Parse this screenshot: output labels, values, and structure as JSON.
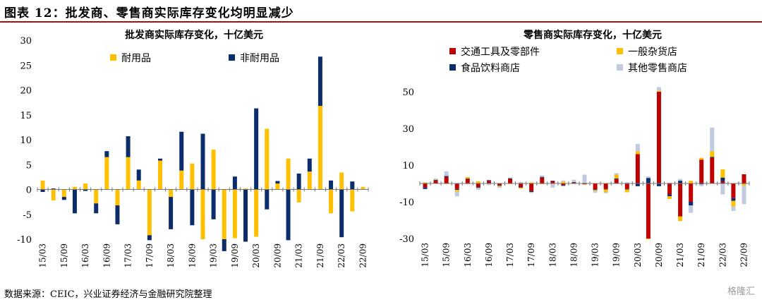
{
  "header": {
    "figure_title": "图表 12：批发商、零售商实际库存变化均明显减少"
  },
  "footer": {
    "source": "数据来源：CEIC，兴业证券经济与金融研究院整理",
    "watermark": "格隆汇"
  },
  "colors": {
    "yellow": "#ffc000",
    "navy": "#0c2d6b",
    "red": "#c00000",
    "lightblue": "#c0cbe0"
  },
  "chart_data": [
    {
      "type": "bar",
      "stacking": "stacked",
      "title": "批发商实际库存变化，十亿美元",
      "ylim": [
        -10,
        30
      ],
      "yticks": [
        -10,
        -5,
        0,
        5,
        10,
        15,
        20,
        25,
        30
      ],
      "categories": [
        "15/03",
        "15/06",
        "15/09",
        "15/12",
        "16/03",
        "16/06",
        "16/09",
        "16/12",
        "17/03",
        "17/06",
        "17/09",
        "17/12",
        "18/03",
        "18/06",
        "18/09",
        "18/12",
        "19/03",
        "19/06",
        "19/09",
        "19/12",
        "20/03",
        "20/06",
        "20/09",
        "20/12",
        "21/03",
        "21/06",
        "21/09",
        "21/12",
        "22/03",
        "22/06",
        "22/09"
      ],
      "xtick_labels": [
        "15/03",
        "15/09",
        "16/03",
        "16/09",
        "17/03",
        "17/09",
        "18/03",
        "18/09",
        "19/03",
        "19/09",
        "20/03",
        "20/09",
        "21/03",
        "21/09",
        "22/03",
        "22/09"
      ],
      "legend": [
        "耐用品",
        "非耐用品"
      ],
      "series": [
        {
          "name": "耐用品",
          "color": "#ffc000",
          "values": [
            1.8,
            -2.2,
            -1.5,
            0.5,
            1.2,
            -2.8,
            6.5,
            -3.2,
            6.5,
            1.8,
            -9.2,
            5.8,
            -1.5,
            3.8,
            5.2,
            -10.0,
            8.0,
            -10.0,
            -9.8,
            0.2,
            -9.5,
            12.2,
            1.2,
            6.2,
            -2.6,
            3.6,
            16.8,
            -4.8,
            3.4,
            -4.4,
            0.5
          ]
        },
        {
          "name": "非耐用品",
          "color": "#0c2d6b",
          "values": [
            -0.5,
            0.2,
            -0.6,
            -4.8,
            -0.3,
            -2.0,
            1.2,
            -3.8,
            4.2,
            2.2,
            -1.0,
            0.4,
            -6.5,
            7.8,
            -7.2,
            11.2,
            -6.0,
            -2.4,
            2.6,
            -10.5,
            16.3,
            -4.0,
            0.5,
            -10.2,
            3.2,
            2.6,
            9.9,
            1.8,
            -9.6,
            1.6,
            0.0
          ]
        }
      ]
    },
    {
      "type": "bar",
      "stacking": "stacked",
      "title": "零售商实际库存变化，十亿美元",
      "ylim": [
        -30,
        50
      ],
      "yticks": [
        -30,
        -10,
        10,
        30,
        50
      ],
      "categories": [
        "15/03",
        "15/06",
        "15/09",
        "15/12",
        "16/03",
        "16/06",
        "16/09",
        "16/12",
        "17/03",
        "17/06",
        "17/09",
        "17/12",
        "18/03",
        "18/06",
        "18/09",
        "18/12",
        "19/03",
        "19/06",
        "19/09",
        "19/12",
        "20/03",
        "20/06",
        "20/09",
        "20/12",
        "21/03",
        "21/06",
        "21/09",
        "21/12",
        "22/03",
        "22/06",
        "22/09"
      ],
      "xtick_labels": [
        "15/03",
        "15/09",
        "16/03",
        "16/09",
        "17/03",
        "17/09",
        "18/03",
        "18/09",
        "19/03",
        "19/09",
        "20/03",
        "20/09",
        "21/03",
        "21/09",
        "22/03",
        "22/09"
      ],
      "legend": [
        "交通工具及零部件",
        "食品饮料商店",
        "一般杂货店",
        "其他零售商店"
      ],
      "series": [
        {
          "name": "交通工具及零部件",
          "color": "#c00000",
          "values": [
            -2.2,
            1.5,
            3.5,
            -3.0,
            2.4,
            -2.0,
            1.4,
            -1.0,
            2.5,
            -2.0,
            -4.2,
            3.2,
            1.2,
            -1.0,
            0.5,
            -0.5,
            -3.2,
            -3.0,
            2.4,
            -3.0,
            16.0,
            -30.0,
            50.0,
            -6.0,
            -18.0,
            -10.0,
            13.0,
            14.0,
            1.2,
            -8.0,
            5.0
          ]
        },
        {
          "name": "食品饮料商店",
          "color": "#0c2d6b",
          "values": [
            -0.8,
            0.4,
            0.6,
            -0.5,
            0.3,
            -0.4,
            0.4,
            -0.3,
            0.3,
            -0.3,
            -0.5,
            0.4,
            0.3,
            -0.3,
            0.3,
            0.3,
            -0.4,
            -0.3,
            0.4,
            -0.3,
            -1.5,
            3.0,
            -1.5,
            -1.0,
            1.5,
            -2.0,
            -0.5,
            0.5,
            2.0,
            -1.5,
            -0.3
          ]
        },
        {
          "name": "一般杂货店",
          "color": "#ffc000",
          "values": [
            0.5,
            0.3,
            -0.3,
            -1.0,
            0.8,
            1.2,
            -0.2,
            -0.5,
            -0.3,
            -0.5,
            0.6,
            -0.4,
            -0.3,
            1.0,
            -0.3,
            -0.2,
            -0.5,
            -1.5,
            2.0,
            -1.5,
            1.5,
            -0.4,
            0.5,
            -1.5,
            -2.5,
            1.5,
            1.0,
            3.0,
            4.5,
            -3.0,
            -1.0
          ]
        },
        {
          "name": "其他零售商店",
          "color": "#c0cbe0",
          "values": [
            0.2,
            0.5,
            2.5,
            -2.5,
            -0.5,
            -1.0,
            -0.8,
            -0.6,
            0.5,
            0.8,
            -0.5,
            0.8,
            -2.0,
            0.6,
            1.2,
            4.5,
            -1.0,
            -0.5,
            0.8,
            0.7,
            4.0,
            0.8,
            2.0,
            0.5,
            1.0,
            -4.0,
            -1.0,
            13.0,
            -6.0,
            -2.5,
            -10.0
          ]
        }
      ]
    }
  ]
}
